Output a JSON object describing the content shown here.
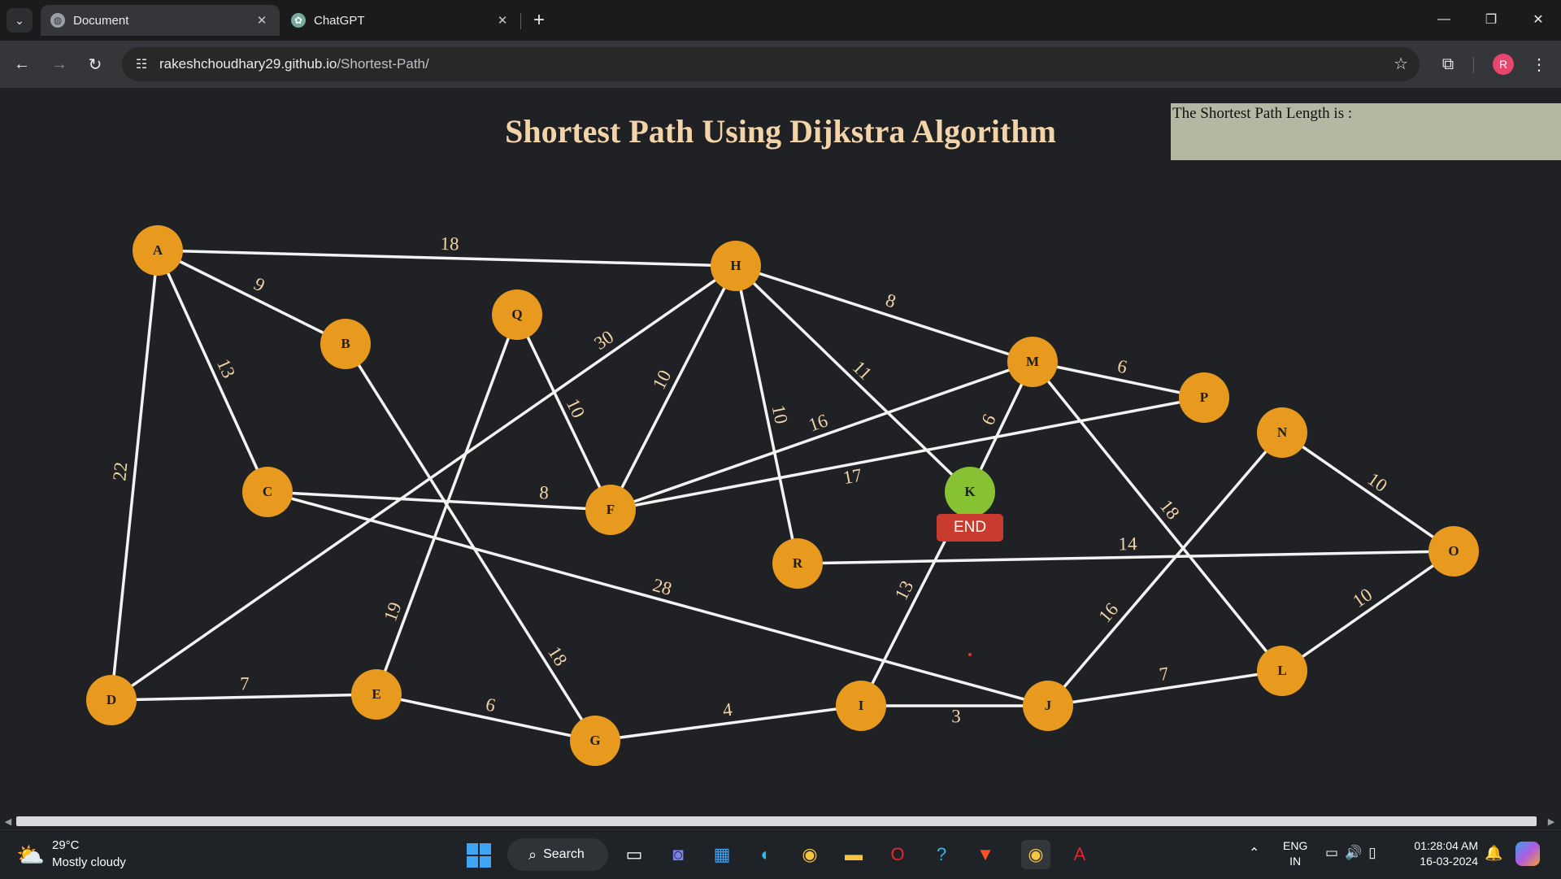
{
  "browser": {
    "tabs": [
      {
        "title": "Document",
        "favicon": "globe-icon",
        "active": true
      },
      {
        "title": "ChatGPT",
        "favicon": "chatgpt-icon",
        "active": false
      }
    ],
    "new_tab_symbol": "+",
    "address_bar": {
      "url_host": "rakeshchoudhary29.github.io",
      "url_path": "/Shortest-Path/"
    },
    "profile_initial": "R"
  },
  "page": {
    "title": "Shortest Path Using Dijkstra Algorithm",
    "result_label": "The Shortest Path Length is :",
    "end_label": "END",
    "nodes": [
      {
        "id": "A",
        "state": "default"
      },
      {
        "id": "B",
        "state": "default"
      },
      {
        "id": "C",
        "state": "default"
      },
      {
        "id": "D",
        "state": "default"
      },
      {
        "id": "E",
        "state": "default"
      },
      {
        "id": "F",
        "state": "default"
      },
      {
        "id": "G",
        "state": "default"
      },
      {
        "id": "H",
        "state": "default"
      },
      {
        "id": "I",
        "state": "default"
      },
      {
        "id": "J",
        "state": "default"
      },
      {
        "id": "K",
        "state": "end"
      },
      {
        "id": "L",
        "state": "default"
      },
      {
        "id": "M",
        "state": "default"
      },
      {
        "id": "N",
        "state": "default"
      },
      {
        "id": "O",
        "state": "default"
      },
      {
        "id": "P",
        "state": "default"
      },
      {
        "id": "Q",
        "state": "default"
      },
      {
        "id": "R",
        "state": "default"
      }
    ],
    "edges": [
      {
        "from": "A",
        "to": "H",
        "weight": "18"
      },
      {
        "from": "A",
        "to": "B",
        "weight": "9"
      },
      {
        "from": "A",
        "to": "C",
        "weight": "13"
      },
      {
        "from": "A",
        "to": "D",
        "weight": "22"
      },
      {
        "from": "B",
        "to": "G",
        "weight": "18"
      },
      {
        "from": "C",
        "to": "F",
        "weight": "8"
      },
      {
        "from": "C",
        "to": "J",
        "weight": "28"
      },
      {
        "from": "D",
        "to": "E",
        "weight": "7"
      },
      {
        "from": "D",
        "to": "H",
        "weight": "30"
      },
      {
        "from": "E",
        "to": "Q",
        "weight": "19"
      },
      {
        "from": "E",
        "to": "G",
        "weight": "6"
      },
      {
        "from": "Q",
        "to": "F",
        "weight": "10"
      },
      {
        "from": "H",
        "to": "F",
        "weight": "10"
      },
      {
        "from": "H",
        "to": "R",
        "weight": "10"
      },
      {
        "from": "H",
        "to": "K",
        "weight": "11"
      },
      {
        "from": "H",
        "to": "M",
        "weight": "8"
      },
      {
        "from": "F",
        "to": "M",
        "weight": "16"
      },
      {
        "from": "F",
        "to": "P",
        "weight": "17"
      },
      {
        "from": "M",
        "to": "K",
        "weight": "6"
      },
      {
        "from": "M",
        "to": "P",
        "weight": "6"
      },
      {
        "from": "M",
        "to": "L",
        "weight": "18"
      },
      {
        "from": "K",
        "to": "I",
        "weight": "13"
      },
      {
        "from": "G",
        "to": "I",
        "weight": "4"
      },
      {
        "from": "I",
        "to": "J",
        "weight": "3"
      },
      {
        "from": "R",
        "to": "O",
        "weight": "14"
      },
      {
        "from": "N",
        "to": "J",
        "weight": "16"
      },
      {
        "from": "N",
        "to": "O",
        "weight": "10"
      },
      {
        "from": "J",
        "to": "L",
        "weight": "7"
      },
      {
        "from": "L",
        "to": "O",
        "weight": "10"
      }
    ]
  },
  "taskbar": {
    "weather_temp": "29°C",
    "weather_desc": "Mostly cloudy",
    "search_label": "Search",
    "language": "ENG",
    "region": "IN",
    "time": "01:28:04 AM",
    "date": "16-03-2024",
    "colors": {
      "accent": "#3da5f4"
    }
  },
  "colors": {
    "node": "#e89a1f",
    "end_node": "#86c232",
    "edge": "#f3f3f3",
    "weight_text": "#f3d4a8",
    "end_badge": "#c93a2f",
    "result_box": "#b2b8a2"
  }
}
